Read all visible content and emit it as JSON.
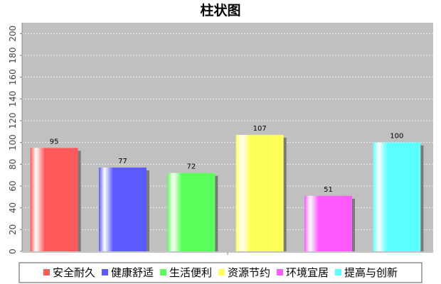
{
  "chart_data": {
    "type": "bar",
    "title": "柱状图",
    "categories": [
      "安全耐久",
      "健康舒适",
      "生活便利",
      "资源节约",
      "环境宜居",
      "提高与创新"
    ],
    "values": [
      95,
      77,
      72,
      107,
      51,
      100
    ],
    "colors": [
      "#ff5a5a",
      "#5a5aff",
      "#5aff5a",
      "#ffff5a",
      "#ff5aff",
      "#5affff"
    ],
    "value_labels": [
      "95",
      "77",
      "72",
      "107",
      "51",
      "100"
    ],
    "ylim": [
      0,
      210
    ],
    "yticks": [
      0,
      20,
      40,
      60,
      80,
      100,
      120,
      140,
      160,
      180,
      200
    ],
    "ytick_labels": [
      "0",
      "20",
      "40",
      "60",
      "80",
      "100",
      "120",
      "140",
      "160",
      "180",
      "200"
    ],
    "grid": true,
    "plot_background": "#c0c0c0",
    "legend_position": "bottom",
    "xlabel": "",
    "ylabel": ""
  }
}
